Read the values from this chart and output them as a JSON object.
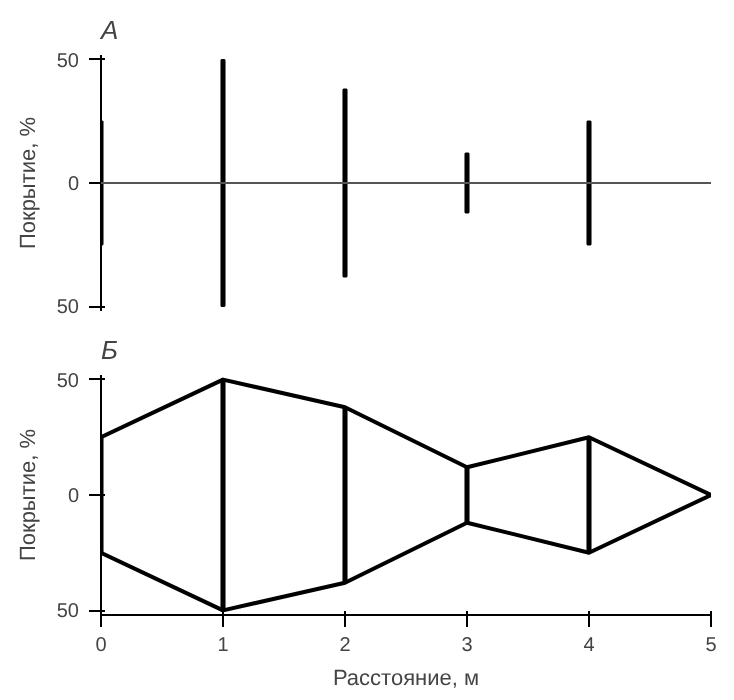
{
  "chart_data": [
    {
      "type": "bar",
      "title": "А",
      "ylabel": "Покрытие, %",
      "x": [
        0,
        1,
        2,
        3,
        4
      ],
      "values": [
        50,
        100,
        76,
        24,
        50
      ],
      "base": [
        -25,
        -50,
        -38,
        -12,
        -25
      ],
      "color": "#000000",
      "xlim": [
        0,
        5
      ],
      "ylim": [
        -52,
        52
      ],
      "yticks": [
        {
          "value": -50,
          "label": "50"
        },
        {
          "value": 0,
          "label": "0"
        },
        {
          "value": 50,
          "label": "50"
        }
      ],
      "tick_labels": "y",
      "grid": false,
      "ref_lines": [
        {
          "axis": "y",
          "value": 0,
          "color": "#555555"
        }
      ]
    },
    {
      "type": "line",
      "title": "Б",
      "ylabel": "Покрытие, %",
      "xlabel": "Расстояние, м",
      "x": [
        0,
        1,
        2,
        3,
        4,
        5
      ],
      "xlim": [
        0,
        5
      ],
      "xticks": [
        0,
        1,
        2,
        3,
        4,
        5
      ],
      "ylim": [
        -52,
        52
      ],
      "yticks": [
        {
          "value": -50,
          "label": "50"
        },
        {
          "value": 0,
          "label": "0"
        },
        {
          "value": 50,
          "label": "50"
        }
      ],
      "grid": false,
      "marker": "none",
      "series": [
        {
          "color": "#000000",
          "values": [
            25,
            50,
            38,
            12,
            25,
            0
          ]
        },
        {
          "color": "#000000",
          "values": [
            -25,
            -50,
            -38,
            -12,
            -25,
            0
          ]
        },
        {
          "type": "bar",
          "color": "#000000",
          "values": [
            50,
            100,
            76,
            24,
            50,
            null
          ],
          "base": [
            -25,
            -50,
            -38,
            -12,
            -25,
            null
          ]
        }
      ]
    }
  ]
}
